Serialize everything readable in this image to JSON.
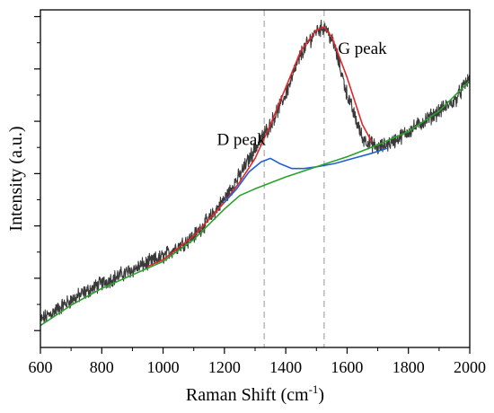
{
  "chart_data": {
    "type": "line",
    "title": "",
    "xlabel": "Raman Shift (cm",
    "xlabel_sup": "-1",
    "xlabel_close": ")",
    "ylabel": "Intensity (a.u.)",
    "xlim": [
      600,
      2000
    ],
    "ylim": [
      0,
      1
    ],
    "x_ticks": [
      600,
      800,
      1000,
      1200,
      1400,
      1600,
      1800,
      2000
    ],
    "y_ticks_labeled": false,
    "grid": false,
    "vlines": [
      1330,
      1525
    ],
    "annotations": [
      {
        "text": "D peak",
        "x": 1255,
        "y": 0.6
      },
      {
        "text": "G peak",
        "x": 1650,
        "y": 0.87
      }
    ],
    "series": [
      {
        "color": "#3a3a3a",
        "style": "noisy-raw",
        "x": [
          600,
          700,
          800,
          900,
          1000,
          1100,
          1150,
          1200,
          1250,
          1300,
          1350,
          1400,
          1450,
          1500,
          1530,
          1560,
          1600,
          1650,
          1700,
          1750,
          1800,
          1850,
          1900,
          1950,
          2000
        ],
        "y": [
          0.08,
          0.14,
          0.19,
          0.23,
          0.27,
          0.33,
          0.38,
          0.44,
          0.51,
          0.59,
          0.66,
          0.75,
          0.87,
          0.94,
          0.95,
          0.89,
          0.75,
          0.62,
          0.59,
          0.61,
          0.64,
          0.67,
          0.7,
          0.73,
          0.8
        ]
      },
      {
        "color": "#e0262a",
        "style": "fit-total",
        "x": [
          950,
          1000,
          1100,
          1200,
          1250,
          1300,
          1350,
          1400,
          1450,
          1500,
          1525,
          1550,
          1600,
          1650,
          1680
        ],
        "y": [
          0.24,
          0.26,
          0.33,
          0.43,
          0.49,
          0.56,
          0.66,
          0.77,
          0.88,
          0.94,
          0.95,
          0.92,
          0.8,
          0.66,
          0.61
        ]
      },
      {
        "color": "#1f5fd6",
        "style": "fit-component",
        "x": [
          1200,
          1240,
          1280,
          1320,
          1350,
          1380,
          1420,
          1460,
          1500,
          1560,
          1620,
          1680,
          1730
        ],
        "y": [
          0.43,
          0.47,
          0.52,
          0.55,
          0.56,
          0.545,
          0.53,
          0.53,
          0.535,
          0.545,
          0.56,
          0.575,
          0.59
        ]
      },
      {
        "color": "#2ca02c",
        "style": "baseline",
        "x": [
          600,
          700,
          800,
          900,
          1000,
          1100,
          1200,
          1250,
          1300,
          1400,
          1500,
          1600,
          1700,
          1800,
          1900,
          2000
        ],
        "y": [
          0.065,
          0.125,
          0.175,
          0.215,
          0.255,
          0.32,
          0.41,
          0.45,
          0.47,
          0.505,
          0.535,
          0.565,
          0.6,
          0.64,
          0.7,
          0.79
        ]
      }
    ]
  }
}
